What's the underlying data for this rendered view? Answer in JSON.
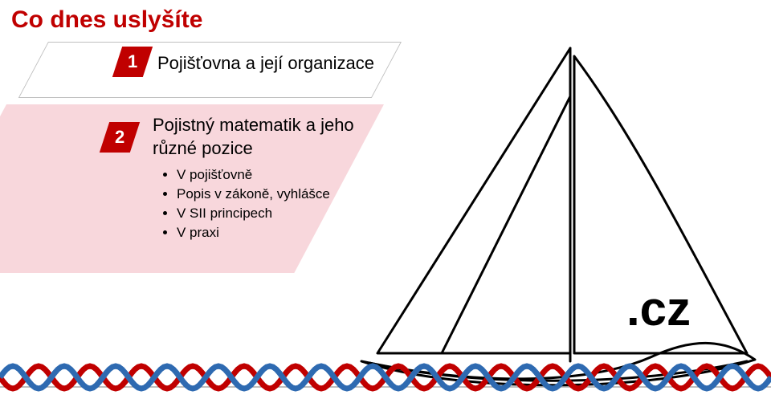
{
  "title": {
    "text": "Co dnes uslyšíte",
    "color": "#c00000",
    "fontsize": 30
  },
  "item1": {
    "badge": "1",
    "badge_bg": "#c00000",
    "label": "Pojišťovna a její organizace",
    "label_fontsize": 22,
    "label_color": "#000000",
    "parallelogram_fill": "#ffffff",
    "parallelogram_border": "#bfbfbf"
  },
  "item2": {
    "badge": "2",
    "badge_bg": "#c00000",
    "line1": "Pojistný matematik a jeho",
    "line2": "různé pozice",
    "label_fontsize": 22,
    "label_color": "#000000",
    "parallelogram_fill": "#f8d7dc",
    "bullets": [
      "V pojišťovně",
      "Popis v zákoně, vyhlášce",
      "V SII principech",
      "V praxi"
    ],
    "bullet_fontsize": 17,
    "bullet_color": "#000000"
  },
  "logo": {
    "cz_text": ".cz",
    "cz_fontsize": 60,
    "cz_color": "#000000",
    "boat_stroke": "#000000",
    "boat_stroke_width": 3
  },
  "waves": {
    "red": "#c00000",
    "blue": "#2e6ab1",
    "amplitude": 14,
    "wavelength": 64,
    "stroke_width": 7,
    "baseline_color": "#7f7f7f"
  },
  "background": "#ffffff"
}
